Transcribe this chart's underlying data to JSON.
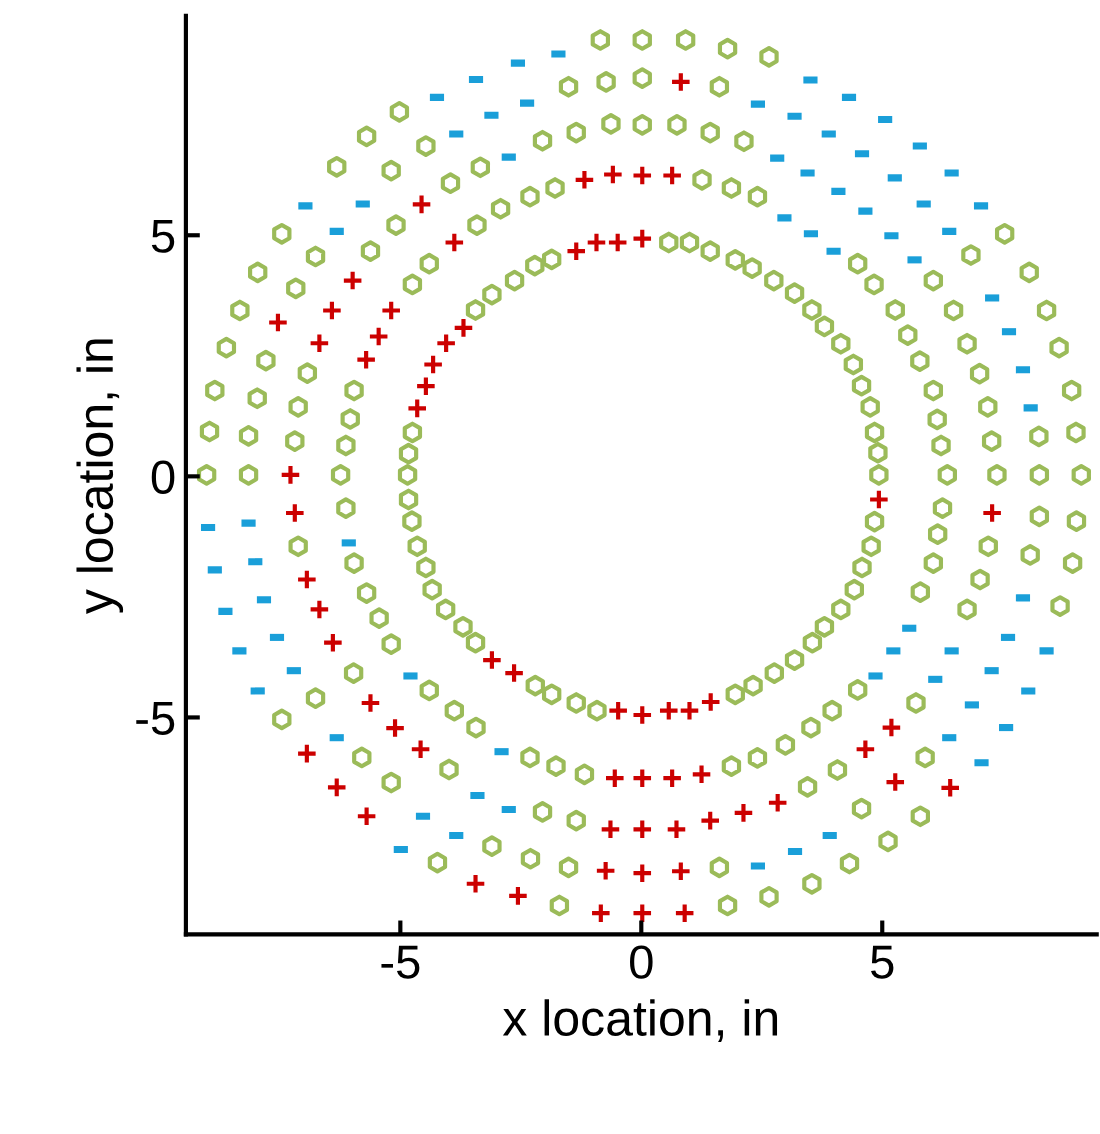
{
  "chart_data": {
    "type": "scatter",
    "xlabel": "x location, in",
    "ylabel": "y location, in",
    "xlim": [
      -9.45,
      9.45
    ],
    "ylim": [
      -9.5,
      9.55
    ],
    "xticks": [
      -5,
      0,
      5
    ],
    "yticks": [
      -5,
      0,
      5
    ],
    "grid": false,
    "legend": false,
    "series": [
      {
        "color": "#9bbb59",
        "x": [
          -0.85,
          -1.51,
          -0.73,
          -5.02,
          -5.7,
          -4.47,
          -5.19,
          -6.32,
          -2.05,
          -1.35,
          -0.63,
          -3.34,
          -3.96,
          -2.92,
          -2.31,
          -1.79,
          -5.09,
          -7.46,
          -6.76,
          -5.62,
          -3.41,
          -7.96,
          -7.17,
          -4.4,
          -4.75,
          -2.21,
          -2.63,
          -1.86,
          -3.1,
          -3.44,
          -8.33,
          -8.61,
          -7.79,
          -6.93,
          -5.96,
          -8.85,
          -7.97,
          -7.12,
          -6.04,
          -4.75,
          -8.96,
          -8.15,
          -7.19,
          -6.13,
          -4.83,
          0.02,
          0.92,
          1.79,
          2.65,
          0.02,
          1.62,
          0.02,
          0.74,
          1.43,
          2.13,
          1.26,
          1.87,
          2.41,
          0.57,
          1.0,
          1.43,
          1.95,
          2.3,
          2.75,
          3.18,
          3.54,
          3.8,
          4.14,
          4.4,
          4.57,
          4.75,
          4.84,
          4.91,
          7.54,
          6.84,
          8.05,
          4.49,
          4.83,
          6.06,
          5.27,
          6.48,
          8.41,
          5.53,
          6.76,
          8.67,
          5.78,
          7.02,
          8.93,
          6.06,
          7.19,
          6.14,
          8.25,
          9.02,
          7.27,
          6.22,
          -9.02,
          -8.15,
          -6.24,
          -4.85,
          -6.13,
          -4.83,
          -4.76,
          -4.65,
          -7.12,
          -5.96,
          -4.47,
          -4.34,
          -5.7,
          -4.06,
          -5.44,
          -3.7,
          -3.44,
          -5.19,
          -5.97,
          -4.4,
          -2.2,
          -1.86,
          -1.35,
          -0.92,
          -6.76,
          -7.46,
          -3.88,
          -3.43,
          -5.8,
          -3.99,
          -5.19,
          -2.31,
          -1.77,
          -1.18,
          -2.05,
          -1.35,
          -3.1,
          -4.23,
          -2.3,
          -1.51,
          -1.7,
          4.93,
          6.35,
          7.38,
          8.26,
          9.13,
          4.84,
          6.25,
          8.26,
          9.03,
          4.77,
          6.15,
          7.2,
          8.07,
          8.95,
          4.58,
          6.06,
          7.03,
          4.42,
          5.79,
          6.76,
          8.69,
          4.14,
          3.8,
          3.55,
          3.18,
          2.76,
          2.32,
          1.95,
          4.49,
          5.7,
          3.96,
          3.52,
          5.89,
          2.99,
          2.41,
          1.87,
          4.07,
          3.45,
          5.79,
          4.57,
          5.12,
          4.32,
          3.54,
          2.65,
          1.79,
          1.62
        ],
        "values": [
          9.05,
          8.08,
          8.18,
          7.56,
          7.05,
          6.85,
          6.34,
          6.42,
          6.96,
          7.13,
          7.31,
          6.41,
          6.08,
          5.55,
          5.8,
          5.98,
          5.21,
          5.03,
          4.56,
          4.67,
          5.21,
          4.23,
          3.9,
          4.41,
          3.98,
          4.37,
          4.06,
          4.5,
          3.77,
          3.45,
          3.44,
          2.67,
          2.4,
          2.14,
          1.78,
          1.78,
          1.62,
          1.44,
          1.19,
          0.91,
          0.93,
          0.84,
          0.73,
          0.64,
          0.47,
          9.05,
          9.05,
          8.87,
          8.7,
          8.26,
          8.08,
          7.29,
          7.29,
          7.13,
          6.95,
          6.15,
          5.98,
          5.8,
          4.85,
          4.85,
          4.67,
          4.49,
          4.32,
          4.06,
          3.8,
          3.45,
          3.11,
          2.75,
          2.32,
          1.88,
          1.44,
          0.91,
          0.49,
          5.03,
          4.59,
          4.23,
          4.41,
          3.98,
          4.06,
          3.45,
          3.44,
          3.44,
          2.93,
          2.75,
          2.67,
          2.39,
          2.13,
          1.78,
          1.78,
          1.44,
          1.18,
          0.83,
          0.91,
          0.73,
          0.64,
          0.03,
          0.03,
          0.03,
          0.03,
          -0.66,
          -0.48,
          -0.93,
          -1.45,
          -1.45,
          -1.8,
          -1.89,
          -2.35,
          -2.42,
          -2.76,
          -2.94,
          -3.12,
          -3.45,
          -3.48,
          -4.08,
          -4.44,
          -4.34,
          -4.52,
          -4.7,
          -4.86,
          -4.6,
          -5.04,
          -4.86,
          -5.21,
          -5.83,
          -6.08,
          -6.35,
          -5.83,
          -6.01,
          -6.18,
          -6.96,
          -7.14,
          -7.67,
          -8.01,
          -7.93,
          -8.11,
          -8.9,
          0.03,
          0.03,
          0.03,
          0.03,
          0.03,
          -0.94,
          -0.66,
          -0.83,
          -0.93,
          -1.45,
          -1.2,
          -1.45,
          -1.63,
          -1.8,
          -1.89,
          -1.8,
          -2.14,
          -2.35,
          -2.4,
          -2.76,
          -2.69,
          -2.76,
          -3.12,
          -3.45,
          -3.81,
          -4.08,
          -4.34,
          -4.52,
          -4.43,
          -4.7,
          -4.86,
          -5.21,
          -5.83,
          -5.57,
          -5.84,
          -6.01,
          -6.09,
          -6.44,
          -7.05,
          -6.89,
          -7.57,
          -8.03,
          -8.45,
          -8.72,
          -8.9,
          -8.11
        ]
      },
      {
        "color": "#cc0000",
        "x": [
          -1.18,
          -0.59,
          -4.56,
          -3.88,
          -5.99,
          -6.42,
          -5.19,
          -7.54,
          -5.45,
          -6.68,
          -5.71,
          -3.69,
          -4.05,
          -4.32,
          -4.47,
          -4.65,
          -1.35,
          -0.93,
          -0.49,
          0.82,
          0.02,
          0.64,
          0.02,
          -7.28,
          -7.19,
          -6.94,
          -6.68,
          -6.4,
          -5.62,
          -5.11,
          -4.58,
          -6.94,
          -6.32,
          -5.7,
          -3.1,
          -2.64,
          -0.48,
          -0.55,
          -0.64,
          -0.74,
          -0.84,
          -3.44,
          -2.56,
          4.93,
          7.28,
          0.02,
          0.57,
          1.0,
          1.44,
          5.19,
          4.65,
          5.27,
          6.41,
          0.02,
          0.64,
          1.25,
          2.12,
          2.83,
          0.02,
          0.73,
          1.43,
          0.02,
          0.82,
          0.02,
          0.9
        ],
        "values": [
          6.15,
          6.26,
          5.64,
          4.85,
          4.06,
          3.44,
          3.44,
          3.19,
          2.9,
          2.76,
          2.42,
          3.08,
          2.76,
          2.32,
          1.87,
          1.41,
          4.67,
          4.85,
          4.85,
          8.18,
          6.24,
          6.24,
          4.93,
          0.03,
          -0.76,
          -2.14,
          -2.76,
          -3.45,
          -4.7,
          -5.22,
          -5.66,
          -5.75,
          -6.45,
          -7.05,
          -3.81,
          -4.08,
          -4.86,
          -6.26,
          -7.32,
          -8.18,
          -9.06,
          -8.45,
          -8.7,
          -0.48,
          -0.76,
          -4.95,
          -4.86,
          -4.86,
          -4.68,
          -5.21,
          -5.66,
          -6.34,
          -6.46,
          -6.26,
          -6.26,
          -6.18,
          -6.98,
          -6.77,
          -7.32,
          -7.32,
          -7.14,
          -8.23,
          -8.19,
          -9.06,
          -9.06
        ]
      },
      {
        "color": "#1a9fd9",
        "x": [
          -1.72,
          -2.56,
          -3.43,
          -4.24,
          -2.37,
          -3.11,
          -3.84,
          -2.75,
          -6.97,
          -5.78,
          -6.32,
          3.51,
          4.31,
          2.42,
          3.18,
          5.06,
          3.89,
          5.78,
          4.58,
          2.82,
          3.45,
          5.26,
          6.44,
          4.09,
          4.65,
          5.86,
          7.05,
          2.97,
          3.52,
          5.19,
          6.39,
          3.99,
          5.67,
          7.28,
          7.63,
          7.92,
          8.08,
          -8.99,
          -8.15,
          -8.85,
          -8.01,
          -8.63,
          -7.83,
          -8.34,
          -7.56,
          -7.96,
          -7.21,
          -6.07,
          -4.79,
          -6.32,
          -2.9,
          -3.4,
          -2.75,
          -4.53,
          -3.84,
          -4.99,
          7.92,
          5.56,
          7.61,
          5.23,
          6.44,
          8.41,
          4.86,
          6.1,
          7.27,
          8.03,
          6.86,
          6.39,
          7.57,
          7.06,
          3.91,
          3.19,
          2.42
        ],
        "values": [
          8.76,
          8.57,
          8.23,
          7.86,
          7.74,
          7.49,
          7.1,
          6.62,
          5.61,
          5.65,
          5.08,
          8.22,
          7.86,
          7.72,
          7.47,
          7.4,
          7.1,
          6.85,
          6.69,
          6.6,
          6.29,
          6.19,
          6.29,
          5.91,
          5.5,
          5.65,
          5.61,
          5.36,
          5.03,
          4.99,
          5.08,
          4.67,
          4.49,
          3.7,
          3.0,
          2.21,
          1.42,
          -1.06,
          -0.97,
          -1.94,
          -1.77,
          -2.8,
          -2.56,
          -3.62,
          -3.34,
          -4.45,
          -4.03,
          -1.38,
          -4.14,
          -5.42,
          -5.71,
          -6.62,
          -6.91,
          -7.05,
          -7.45,
          -7.74,
          -2.52,
          -3.15,
          -3.34,
          -3.62,
          -3.62,
          -3.62,
          -4.14,
          -4.21,
          -4.03,
          -4.45,
          -4.74,
          -5.42,
          -5.21,
          -5.94,
          -7.45,
          -7.78,
          -8.08
        ]
      }
    ]
  }
}
